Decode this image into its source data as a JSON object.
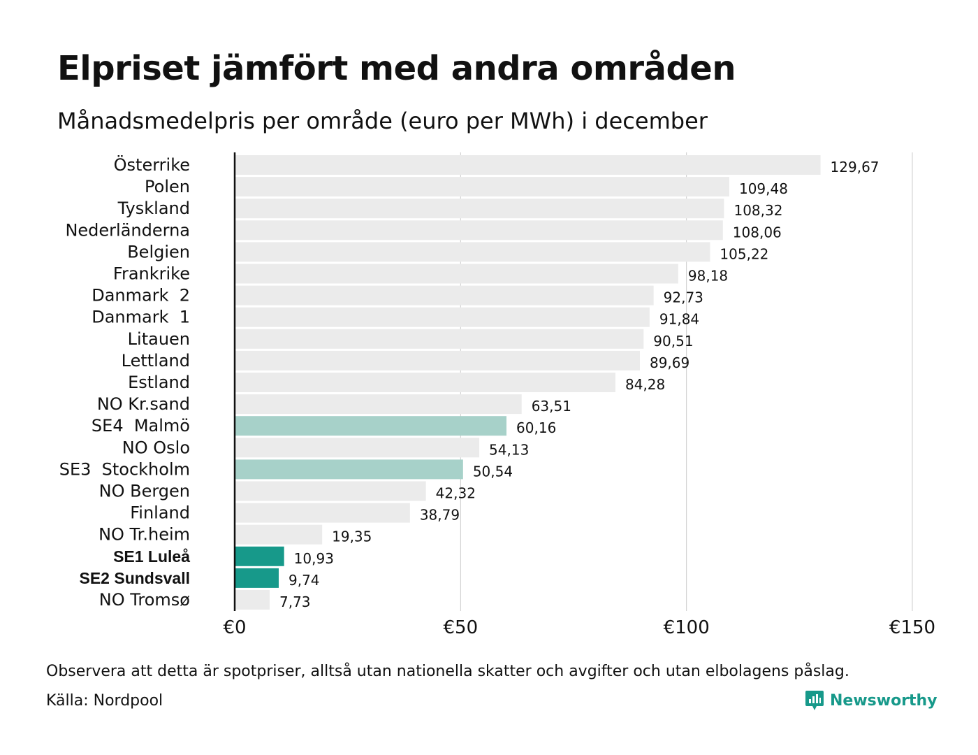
{
  "header": {
    "title": "Elpriset jämfört med andra områden",
    "subtitle": "Månadsmedelpris per område (euro per MWh) i december"
  },
  "footer": {
    "note": "Observera att detta är spotpriser, alltså utan nationella skatter och avgifter och utan elbolagens påslag.",
    "source": "Källa: Nordpool",
    "brand": "Newsworthy"
  },
  "colors": {
    "default_bar": "#ebebeb",
    "light_highlight": "#a7d1c9",
    "strong_highlight": "#17998a",
    "brand": "#17998a"
  },
  "chart_data": {
    "type": "bar",
    "orientation": "horizontal",
    "title": "Elpriset jämfört med andra områden",
    "subtitle": "Månadsmedelpris per område (euro per MWh) i december",
    "xlim": [
      0,
      150
    ],
    "x_ticks": [
      0,
      50,
      100,
      150
    ],
    "x_tick_labels": [
      "€0",
      "€50",
      "€100",
      "€150"
    ],
    "grid": true,
    "categories": [
      "Österrike",
      "Polen",
      "Tyskland",
      "Nederländerna",
      "Belgien",
      "Frankrike",
      "Danmark  2",
      "Danmark  1",
      "Litauen",
      "Lettland",
      "Estland",
      "NO Kr.sand",
      "SE4  Malmö",
      "NO Oslo",
      "SE3  Stockholm",
      "NO Bergen",
      "Finland",
      "NO Tr.heim",
      "SE1 Luleå",
      "SE2 Sundsvall",
      "NO Tromsø"
    ],
    "values": [
      129.67,
      109.48,
      108.32,
      108.06,
      105.22,
      98.18,
      92.73,
      91.84,
      90.51,
      89.69,
      84.28,
      63.51,
      60.16,
      54.13,
      50.54,
      42.32,
      38.79,
      19.35,
      10.93,
      9.74,
      7.73
    ],
    "value_labels": [
      "129,67",
      "109,48",
      "108,32",
      "108,06",
      "105,22",
      "98,18",
      "92,73",
      "91,84",
      "90,51",
      "89,69",
      "84,28",
      "63,51",
      "60,16",
      "54,13",
      "50,54",
      "42,32",
      "38,79",
      "19,35",
      "10,93",
      "9,74",
      "7,73"
    ],
    "highlight": [
      "none",
      "none",
      "none",
      "none",
      "none",
      "none",
      "none",
      "none",
      "none",
      "none",
      "none",
      "none",
      "light",
      "none",
      "light",
      "none",
      "none",
      "none",
      "strong",
      "strong",
      "none"
    ],
    "bold_labels": [
      "SE1 Luleå",
      "SE2 Sundsvall"
    ]
  }
}
